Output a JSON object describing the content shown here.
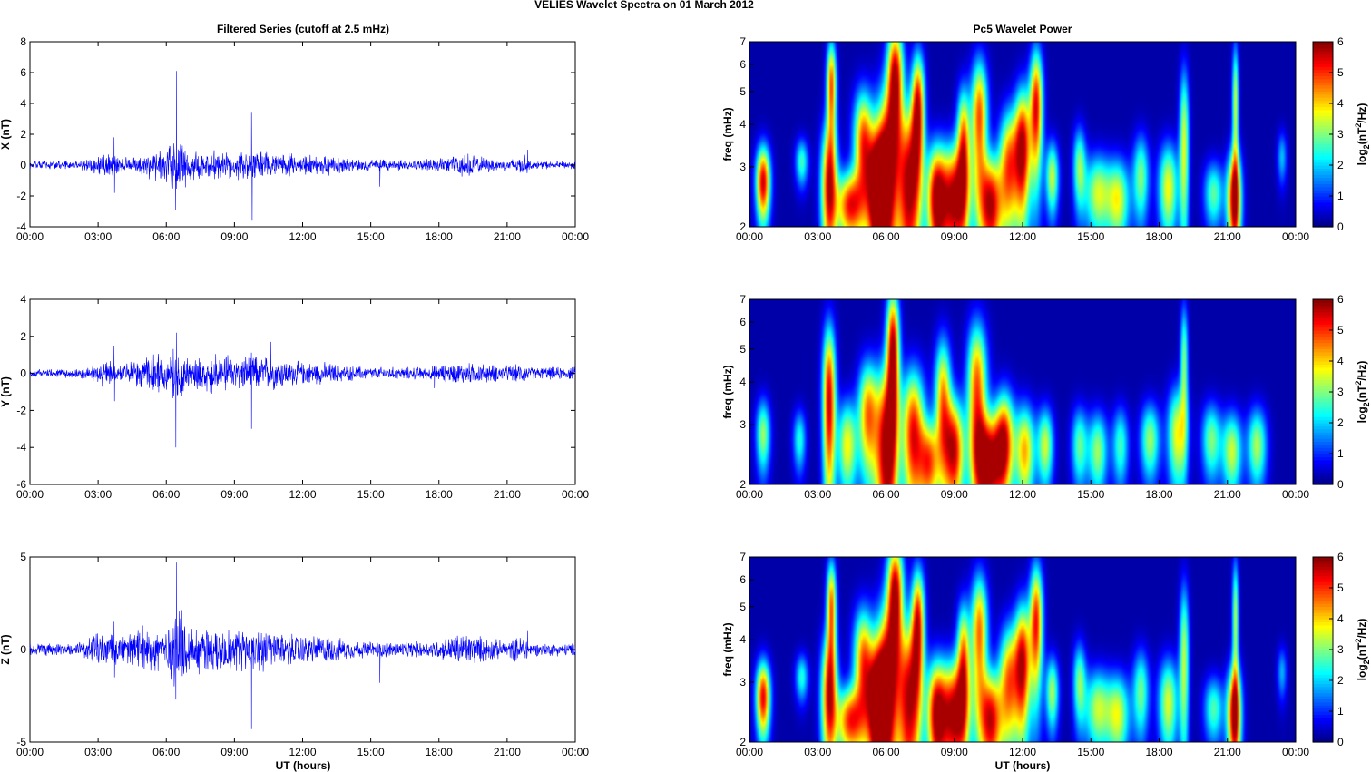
{
  "figure_title": "VELIES Wavelet Spectra on 01 March     2012",
  "left_title": "Filtered Series (cutoff at 2.5 mHz)",
  "right_title": "Pc5 Wavelet Power",
  "bottom_xlabel": "UT (hours)",
  "colors": {
    "trace": "#0000ff",
    "background": "#ffffff",
    "axis": "#000000"
  },
  "chart_data": [
    {
      "type": "line",
      "panel": "X",
      "ylabel": "X (nT)",
      "ylim": [
        -4,
        8
      ],
      "yticks": [
        -4,
        -2,
        0,
        2,
        4,
        6,
        8
      ],
      "xlim_hours": [
        0,
        24
      ],
      "xtick_labels": [
        "00:00",
        "03:00",
        "06:00",
        "09:00",
        "12:00",
        "15:00",
        "18:00",
        "21:00",
        "00:00"
      ],
      "series": [
        {
          "activity_hours": [
            0,
            2,
            3.5,
            4,
            5,
            6,
            6.5,
            7,
            8,
            9,
            9.6,
            10,
            11,
            12,
            13,
            14,
            15,
            16,
            17,
            18,
            19,
            20,
            21,
            21.8,
            22,
            24
          ],
          "noise_amplitude_nT": [
            0.15,
            0.15,
            0.5,
            0.25,
            0.5,
            0.6,
            1.2,
            0.6,
            0.55,
            0.5,
            0.6,
            0.55,
            0.45,
            0.35,
            0.4,
            0.25,
            0.2,
            0.2,
            0.2,
            0.25,
            0.45,
            0.3,
            0.2,
            0.4,
            0.15,
            0.15
          ],
          "spikes": [
            [
              3.7,
              1.8
            ],
            [
              3.72,
              -1.8
            ],
            [
              6.45,
              6.1
            ],
            [
              6.4,
              -2.9
            ],
            [
              9.75,
              3.4
            ],
            [
              9.78,
              -3.6
            ],
            [
              15.4,
              -1.4
            ],
            [
              21.9,
              1.0
            ]
          ]
        }
      ]
    },
    {
      "type": "line",
      "panel": "Y",
      "ylabel": "Y (nT)",
      "ylim": [
        -6,
        4
      ],
      "yticks": [
        -6,
        -4,
        -2,
        0,
        2,
        4
      ],
      "xlim_hours": [
        0,
        24
      ],
      "xtick_labels": [
        "00:00",
        "03:00",
        "06:00",
        "09:00",
        "12:00",
        "15:00",
        "18:00",
        "21:00",
        "00:00"
      ],
      "series": [
        {
          "activity_hours": [
            0,
            2,
            3.5,
            4,
            5,
            6,
            6.5,
            7,
            8,
            9,
            9.6,
            10,
            11,
            12,
            13,
            14,
            15,
            16,
            17,
            18,
            19,
            20,
            21,
            21.8,
            22,
            24
          ],
          "noise_amplitude_nT": [
            0.15,
            0.15,
            0.45,
            0.3,
            0.5,
            0.6,
            1.0,
            0.55,
            0.6,
            0.55,
            0.6,
            0.6,
            0.5,
            0.35,
            0.35,
            0.25,
            0.2,
            0.2,
            0.2,
            0.25,
            0.35,
            0.3,
            0.25,
            0.3,
            0.2,
            0.2
          ],
          "spikes": [
            [
              3.7,
              1.5
            ],
            [
              3.72,
              -1.5
            ],
            [
              6.45,
              2.2
            ],
            [
              6.42,
              -4.0
            ],
            [
              9.75,
              -3.0
            ],
            [
              10.6,
              1.7
            ],
            [
              17.8,
              -0.8
            ]
          ]
        }
      ]
    },
    {
      "type": "line",
      "panel": "Z",
      "ylabel": "Z (nT)",
      "ylim": [
        -5,
        5
      ],
      "yticks": [
        -5,
        0,
        5
      ],
      "xlim_hours": [
        0,
        24
      ],
      "xtick_labels": [
        "00:00",
        "03:00",
        "06:00",
        "09:00",
        "12:00",
        "15:00",
        "18:00",
        "21:00",
        "00:00"
      ],
      "series": [
        {
          "activity_hours": [
            0,
            2,
            3.5,
            4,
            5,
            6,
            6.5,
            7,
            8,
            9,
            9.6,
            10,
            11,
            12,
            13,
            14,
            15,
            16,
            17,
            18,
            19,
            20,
            21,
            21.8,
            22,
            24
          ],
          "noise_amplitude_nT": [
            0.2,
            0.2,
            0.7,
            0.4,
            0.7,
            0.8,
            1.5,
            0.8,
            0.8,
            0.7,
            0.8,
            0.7,
            0.55,
            0.45,
            0.45,
            0.3,
            0.25,
            0.25,
            0.25,
            0.3,
            0.55,
            0.4,
            0.25,
            0.5,
            0.2,
            0.2
          ],
          "spikes": [
            [
              3.7,
              1.5
            ],
            [
              3.72,
              -1.5
            ],
            [
              6.45,
              4.7
            ],
            [
              6.42,
              -2.7
            ],
            [
              9.75,
              -4.3
            ],
            [
              15.4,
              -1.8
            ],
            [
              21.9,
              1.0
            ]
          ]
        }
      ]
    },
    {
      "type": "heatmap",
      "panel": "X",
      "ylabel": "freq (mHz)",
      "yscale": "log",
      "ylim": [
        2,
        7
      ],
      "yticks": [
        2,
        3,
        4,
        5,
        6,
        7
      ],
      "xtick_labels": [
        "00:00",
        "03:00",
        "06:00",
        "09:00",
        "12:00",
        "15:00",
        "18:00",
        "21:00",
        "00:00"
      ],
      "colormap": "jet",
      "colorbar": {
        "label": "log2(nT2/Hz)",
        "label_main": "log",
        "label_sub": "2",
        "label_unit_pre": "(nT",
        "label_sup": "2",
        "label_unit_post": "/Hz)",
        "ticks": [
          0,
          1,
          2,
          3,
          4,
          5,
          6
        ],
        "range": [
          0,
          6
        ]
      },
      "bursts": [
        {
          "t": 0.6,
          "f": 2.7,
          "p": 5.8,
          "w": 0.22,
          "h": 0.5
        },
        {
          "t": 2.3,
          "f": 3.1,
          "p": 2.6,
          "w": 0.2,
          "h": 0.35
        },
        {
          "t": 3.5,
          "f": 2.6,
          "p": 5.5,
          "w": 0.25,
          "h": 0.9
        },
        {
          "t": 3.6,
          "f": 5.2,
          "p": 5.0,
          "w": 0.15,
          "h": 1.2
        },
        {
          "t": 4.4,
          "f": 2.3,
          "p": 5.2,
          "w": 0.4,
          "h": 0.4
        },
        {
          "t": 5.0,
          "f": 3.5,
          "p": 5.0,
          "w": 0.3,
          "h": 1.0
        },
        {
          "t": 5.6,
          "f": 2.5,
          "p": 5.8,
          "w": 0.3,
          "h": 0.8
        },
        {
          "t": 6.0,
          "f": 2.8,
          "p": 6.0,
          "w": 0.35,
          "h": 1.4
        },
        {
          "t": 6.4,
          "f": 5.5,
          "p": 6.0,
          "w": 0.25,
          "h": 1.5
        },
        {
          "t": 7.0,
          "f": 2.6,
          "p": 5.9,
          "w": 0.35,
          "h": 1.2
        },
        {
          "t": 7.4,
          "f": 4.5,
          "p": 5.5,
          "w": 0.2,
          "h": 1.3
        },
        {
          "t": 8.2,
          "f": 2.4,
          "p": 5.5,
          "w": 0.3,
          "h": 0.7
        },
        {
          "t": 9.0,
          "f": 2.4,
          "p": 6.0,
          "w": 0.45,
          "h": 0.7
        },
        {
          "t": 9.4,
          "f": 3.6,
          "p": 4.5,
          "w": 0.2,
          "h": 1.0
        },
        {
          "t": 10.1,
          "f": 4.2,
          "p": 5.0,
          "w": 0.25,
          "h": 1.3
        },
        {
          "t": 10.6,
          "f": 2.3,
          "p": 5.8,
          "w": 0.35,
          "h": 0.6
        },
        {
          "t": 11.4,
          "f": 3.0,
          "p": 4.8,
          "w": 0.3,
          "h": 0.9
        },
        {
          "t": 12.0,
          "f": 3.4,
          "p": 5.8,
          "w": 0.25,
          "h": 1.1
        },
        {
          "t": 12.6,
          "f": 4.5,
          "p": 5.5,
          "w": 0.2,
          "h": 1.4
        },
        {
          "t": 13.3,
          "f": 2.8,
          "p": 3.5,
          "w": 0.2,
          "h": 0.5
        },
        {
          "t": 14.5,
          "f": 3.0,
          "p": 3.0,
          "w": 0.2,
          "h": 0.6
        },
        {
          "t": 15.3,
          "f": 2.5,
          "p": 3.5,
          "w": 0.4,
          "h": 0.5
        },
        {
          "t": 16.2,
          "f": 2.4,
          "p": 3.6,
          "w": 0.35,
          "h": 0.5
        },
        {
          "t": 17.2,
          "f": 2.8,
          "p": 3.0,
          "w": 0.25,
          "h": 0.6
        },
        {
          "t": 18.4,
          "f": 2.6,
          "p": 3.8,
          "w": 0.3,
          "h": 0.6
        },
        {
          "t": 19.1,
          "f": 3.5,
          "p": 3.6,
          "w": 0.15,
          "h": 1.5
        },
        {
          "t": 20.4,
          "f": 2.5,
          "p": 2.8,
          "w": 0.3,
          "h": 0.4
        },
        {
          "t": 21.3,
          "f": 2.4,
          "p": 6.0,
          "w": 0.22,
          "h": 0.6
        },
        {
          "t": 21.35,
          "f": 4.6,
          "p": 3.5,
          "w": 0.1,
          "h": 1.5
        },
        {
          "t": 23.4,
          "f": 3.2,
          "p": 1.8,
          "w": 0.15,
          "h": 0.4
        }
      ]
    },
    {
      "type": "heatmap",
      "panel": "Y",
      "ylabel": "freq (mHz)",
      "yscale": "log",
      "ylim": [
        2,
        7
      ],
      "yticks": [
        2,
        3,
        4,
        5,
        6,
        7
      ],
      "xtick_labels": [
        "00:00",
        "03:00",
        "06:00",
        "09:00",
        "12:00",
        "15:00",
        "18:00",
        "21:00",
        "00:00"
      ],
      "colormap": "jet",
      "colorbar": {
        "label": "log2(nT2/Hz)",
        "label_main": "log",
        "label_sub": "2",
        "label_unit_pre": "(nT",
        "label_sup": "2",
        "label_unit_post": "/Hz)",
        "ticks": [
          0,
          1,
          2,
          3,
          4,
          5,
          6
        ],
        "range": [
          0,
          6
        ]
      },
      "bursts": [
        {
          "t": 0.6,
          "f": 2.8,
          "p": 3.2,
          "w": 0.22,
          "h": 0.5
        },
        {
          "t": 2.2,
          "f": 2.7,
          "p": 2.4,
          "w": 0.2,
          "h": 0.4
        },
        {
          "t": 3.5,
          "f": 3.5,
          "p": 5.8,
          "w": 0.2,
          "h": 1.5
        },
        {
          "t": 4.3,
          "f": 2.6,
          "p": 3.8,
          "w": 0.3,
          "h": 0.6
        },
        {
          "t": 5.2,
          "f": 3.2,
          "p": 4.5,
          "w": 0.3,
          "h": 0.9
        },
        {
          "t": 6.0,
          "f": 2.5,
          "p": 6.0,
          "w": 0.35,
          "h": 1.2
        },
        {
          "t": 6.3,
          "f": 5.0,
          "p": 6.0,
          "w": 0.2,
          "h": 1.6
        },
        {
          "t": 7.2,
          "f": 2.8,
          "p": 5.5,
          "w": 0.35,
          "h": 1.0
        },
        {
          "t": 7.9,
          "f": 2.3,
          "p": 4.5,
          "w": 0.3,
          "h": 0.5
        },
        {
          "t": 8.5,
          "f": 3.5,
          "p": 4.5,
          "w": 0.25,
          "h": 1.2
        },
        {
          "t": 9.0,
          "f": 2.5,
          "p": 5.5,
          "w": 0.3,
          "h": 0.7
        },
        {
          "t": 10.0,
          "f": 3.8,
          "p": 5.0,
          "w": 0.3,
          "h": 1.4
        },
        {
          "t": 10.5,
          "f": 2.3,
          "p": 6.0,
          "w": 0.45,
          "h": 0.6
        },
        {
          "t": 11.2,
          "f": 2.7,
          "p": 5.0,
          "w": 0.3,
          "h": 0.7
        },
        {
          "t": 12.1,
          "f": 2.5,
          "p": 4.3,
          "w": 0.3,
          "h": 0.6
        },
        {
          "t": 13.0,
          "f": 2.6,
          "p": 3.5,
          "w": 0.25,
          "h": 0.5
        },
        {
          "t": 14.5,
          "f": 2.6,
          "p": 2.8,
          "w": 0.25,
          "h": 0.5
        },
        {
          "t": 15.3,
          "f": 2.5,
          "p": 3.2,
          "w": 0.3,
          "h": 0.5
        },
        {
          "t": 16.3,
          "f": 2.6,
          "p": 2.6,
          "w": 0.25,
          "h": 0.5
        },
        {
          "t": 17.6,
          "f": 2.7,
          "p": 3.2,
          "w": 0.3,
          "h": 0.5
        },
        {
          "t": 18.8,
          "f": 2.8,
          "p": 3.8,
          "w": 0.3,
          "h": 0.7
        },
        {
          "t": 19.1,
          "f": 4.6,
          "p": 3.0,
          "w": 0.12,
          "h": 1.4
        },
        {
          "t": 20.3,
          "f": 2.7,
          "p": 3.0,
          "w": 0.3,
          "h": 0.5
        },
        {
          "t": 21.2,
          "f": 2.5,
          "p": 3.5,
          "w": 0.3,
          "h": 0.5
        },
        {
          "t": 22.3,
          "f": 2.6,
          "p": 3.3,
          "w": 0.3,
          "h": 0.5
        }
      ]
    },
    {
      "type": "heatmap",
      "panel": "Z",
      "ylabel": "freq (mHz)",
      "yscale": "log",
      "ylim": [
        2,
        7
      ],
      "yticks": [
        2,
        3,
        4,
        5,
        6,
        7
      ],
      "xtick_labels": [
        "00:00",
        "03:00",
        "06:00",
        "09:00",
        "12:00",
        "15:00",
        "18:00",
        "21:00",
        "00:00"
      ],
      "colormap": "jet",
      "colorbar": {
        "label": "log2(nT2/Hz)",
        "label_main": "log",
        "label_sub": "2",
        "label_unit_pre": "(nT",
        "label_sup": "2",
        "label_unit_post": "/Hz)",
        "ticks": [
          0,
          1,
          2,
          3,
          4,
          5,
          6
        ],
        "range": [
          0,
          6
        ]
      },
      "bursts": [
        {
          "t": 0.6,
          "f": 2.7,
          "p": 5.6,
          "w": 0.22,
          "h": 0.5
        },
        {
          "t": 2.3,
          "f": 3.1,
          "p": 2.4,
          "w": 0.2,
          "h": 0.35
        },
        {
          "t": 3.5,
          "f": 2.7,
          "p": 5.3,
          "w": 0.25,
          "h": 0.9
        },
        {
          "t": 3.6,
          "f": 5.0,
          "p": 4.8,
          "w": 0.15,
          "h": 1.2
        },
        {
          "t": 4.4,
          "f": 2.3,
          "p": 5.0,
          "w": 0.4,
          "h": 0.4
        },
        {
          "t": 5.0,
          "f": 3.4,
          "p": 4.8,
          "w": 0.3,
          "h": 1.0
        },
        {
          "t": 5.6,
          "f": 2.5,
          "p": 5.6,
          "w": 0.3,
          "h": 0.8
        },
        {
          "t": 6.0,
          "f": 2.8,
          "p": 6.0,
          "w": 0.35,
          "h": 1.4
        },
        {
          "t": 6.4,
          "f": 5.5,
          "p": 6.0,
          "w": 0.25,
          "h": 1.5
        },
        {
          "t": 7.0,
          "f": 2.6,
          "p": 5.7,
          "w": 0.35,
          "h": 1.2
        },
        {
          "t": 7.4,
          "f": 4.5,
          "p": 5.3,
          "w": 0.2,
          "h": 1.3
        },
        {
          "t": 8.2,
          "f": 2.4,
          "p": 5.3,
          "w": 0.3,
          "h": 0.7
        },
        {
          "t": 9.0,
          "f": 2.4,
          "p": 6.0,
          "w": 0.45,
          "h": 0.7
        },
        {
          "t": 9.4,
          "f": 3.6,
          "p": 4.3,
          "w": 0.2,
          "h": 1.0
        },
        {
          "t": 10.1,
          "f": 4.2,
          "p": 4.8,
          "w": 0.25,
          "h": 1.3
        },
        {
          "t": 10.6,
          "f": 2.3,
          "p": 5.6,
          "w": 0.35,
          "h": 0.6
        },
        {
          "t": 11.4,
          "f": 3.0,
          "p": 4.6,
          "w": 0.3,
          "h": 0.9
        },
        {
          "t": 12.0,
          "f": 3.4,
          "p": 5.6,
          "w": 0.25,
          "h": 1.1
        },
        {
          "t": 12.6,
          "f": 4.5,
          "p": 5.3,
          "w": 0.2,
          "h": 1.4
        },
        {
          "t": 13.3,
          "f": 2.8,
          "p": 3.3,
          "w": 0.2,
          "h": 0.5
        },
        {
          "t": 14.5,
          "f": 3.0,
          "p": 2.9,
          "w": 0.2,
          "h": 0.6
        },
        {
          "t": 15.3,
          "f": 2.5,
          "p": 3.4,
          "w": 0.4,
          "h": 0.5
        },
        {
          "t": 16.2,
          "f": 2.4,
          "p": 3.5,
          "w": 0.35,
          "h": 0.5
        },
        {
          "t": 17.2,
          "f": 2.8,
          "p": 2.9,
          "w": 0.25,
          "h": 0.6
        },
        {
          "t": 18.4,
          "f": 2.6,
          "p": 3.6,
          "w": 0.3,
          "h": 0.6
        },
        {
          "t": 19.1,
          "f": 3.5,
          "p": 3.4,
          "w": 0.15,
          "h": 1.5
        },
        {
          "t": 20.4,
          "f": 2.5,
          "p": 2.7,
          "w": 0.3,
          "h": 0.4
        },
        {
          "t": 21.3,
          "f": 2.4,
          "p": 6.0,
          "w": 0.22,
          "h": 0.6
        },
        {
          "t": 21.35,
          "f": 4.6,
          "p": 3.3,
          "w": 0.1,
          "h": 1.5
        },
        {
          "t": 23.4,
          "f": 3.2,
          "p": 1.7,
          "w": 0.15,
          "h": 0.4
        }
      ]
    }
  ]
}
